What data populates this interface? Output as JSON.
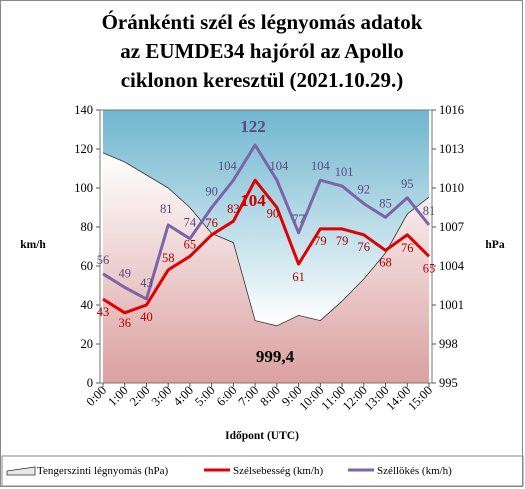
{
  "chart_data": {
    "type": "line",
    "title": [
      "Óránkénti szél és légnyomás adatok",
      "az EUMDE34 hajóról az Apollo",
      "ciklonon keresztül (2021.10.29.)"
    ],
    "xlabel": "Időpont  (UTC)",
    "ylabel_left": "km/h",
    "ylabel_right": "hPa",
    "ylim_left": [
      0,
      140
    ],
    "ylim_right": [
      995,
      1016
    ],
    "yticks_left": [
      0,
      20,
      40,
      60,
      80,
      100,
      120,
      140
    ],
    "yticks_right": [
      995,
      998,
      1001,
      1004,
      1007,
      1010,
      1013,
      1016
    ],
    "categories": [
      "0:00",
      "1:00",
      "2:00",
      "3:00",
      "4:00",
      "5:00",
      "6:00",
      "7:00",
      "8:00",
      "9:00",
      "10:00",
      "11:00",
      "12:00",
      "13:00",
      "14:00",
      "15:00"
    ],
    "series": [
      {
        "name": "Tengerszinti légnyomás (hPa)",
        "axis": "right",
        "color": "#87c4d8",
        "values": [
          1012.7,
          1012.0,
          1011.0,
          1010.0,
          1008.5,
          1006.5,
          1005.8,
          999.8,
          999.4,
          1000.2,
          999.8,
          1001.3,
          1003.0,
          1005.0,
          1008.0,
          1009.3
        ]
      },
      {
        "name": "Szélsebesség (km/h)",
        "axis": "left",
        "color": "#e00000",
        "values": [
          43,
          36,
          40,
          58,
          65,
          76,
          83,
          104,
          90,
          61,
          79,
          79,
          76,
          68,
          76,
          65
        ]
      },
      {
        "name": "Széllökés (km/h)",
        "axis": "left",
        "color": "#7b65a8",
        "values": [
          56,
          49,
          43,
          81,
          74,
          90,
          104,
          122,
          104,
          77,
          104,
          101,
          92,
          85,
          95,
          81
        ]
      }
    ],
    "annotations": {
      "max_gust": "122",
      "max_wind": "104",
      "min_pressure": "999,4"
    },
    "legend_position": "bottom",
    "grid": false
  }
}
